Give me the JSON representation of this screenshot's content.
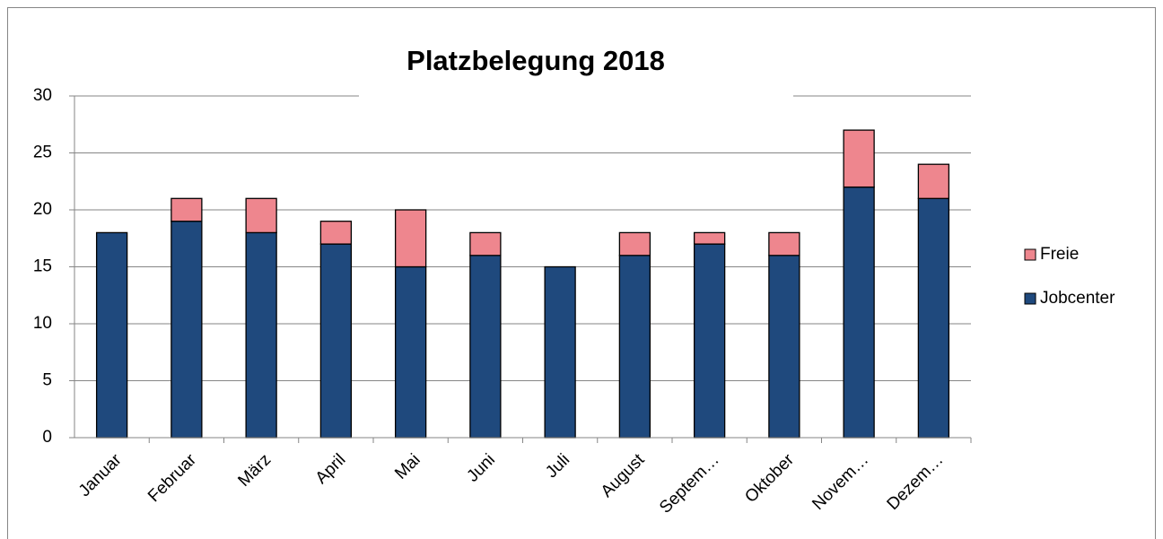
{
  "chart_data": {
    "type": "stacked_bar",
    "title": "Platzbelegung 2018",
    "categories": [
      "Januar",
      "Februar",
      "März",
      "April",
      "Mai",
      "Juni",
      "Juli",
      "August",
      "Septem…",
      "Oktober",
      "Novem…",
      "Dezem…"
    ],
    "series": [
      {
        "name": "Jobcenter",
        "color": "#1f497d",
        "values": [
          18,
          19,
          18,
          17,
          15,
          16,
          15,
          16,
          17,
          16,
          22,
          21
        ]
      },
      {
        "name": "Freie",
        "color": "#ee868e",
        "values": [
          0,
          2,
          3,
          2,
          5,
          2,
          0,
          2,
          1,
          2,
          5,
          3
        ]
      }
    ],
    "ylim": [
      0,
      30
    ],
    "yticks": [
      0,
      5,
      10,
      15,
      20,
      25,
      30
    ],
    "grid": true,
    "legend": "right"
  }
}
